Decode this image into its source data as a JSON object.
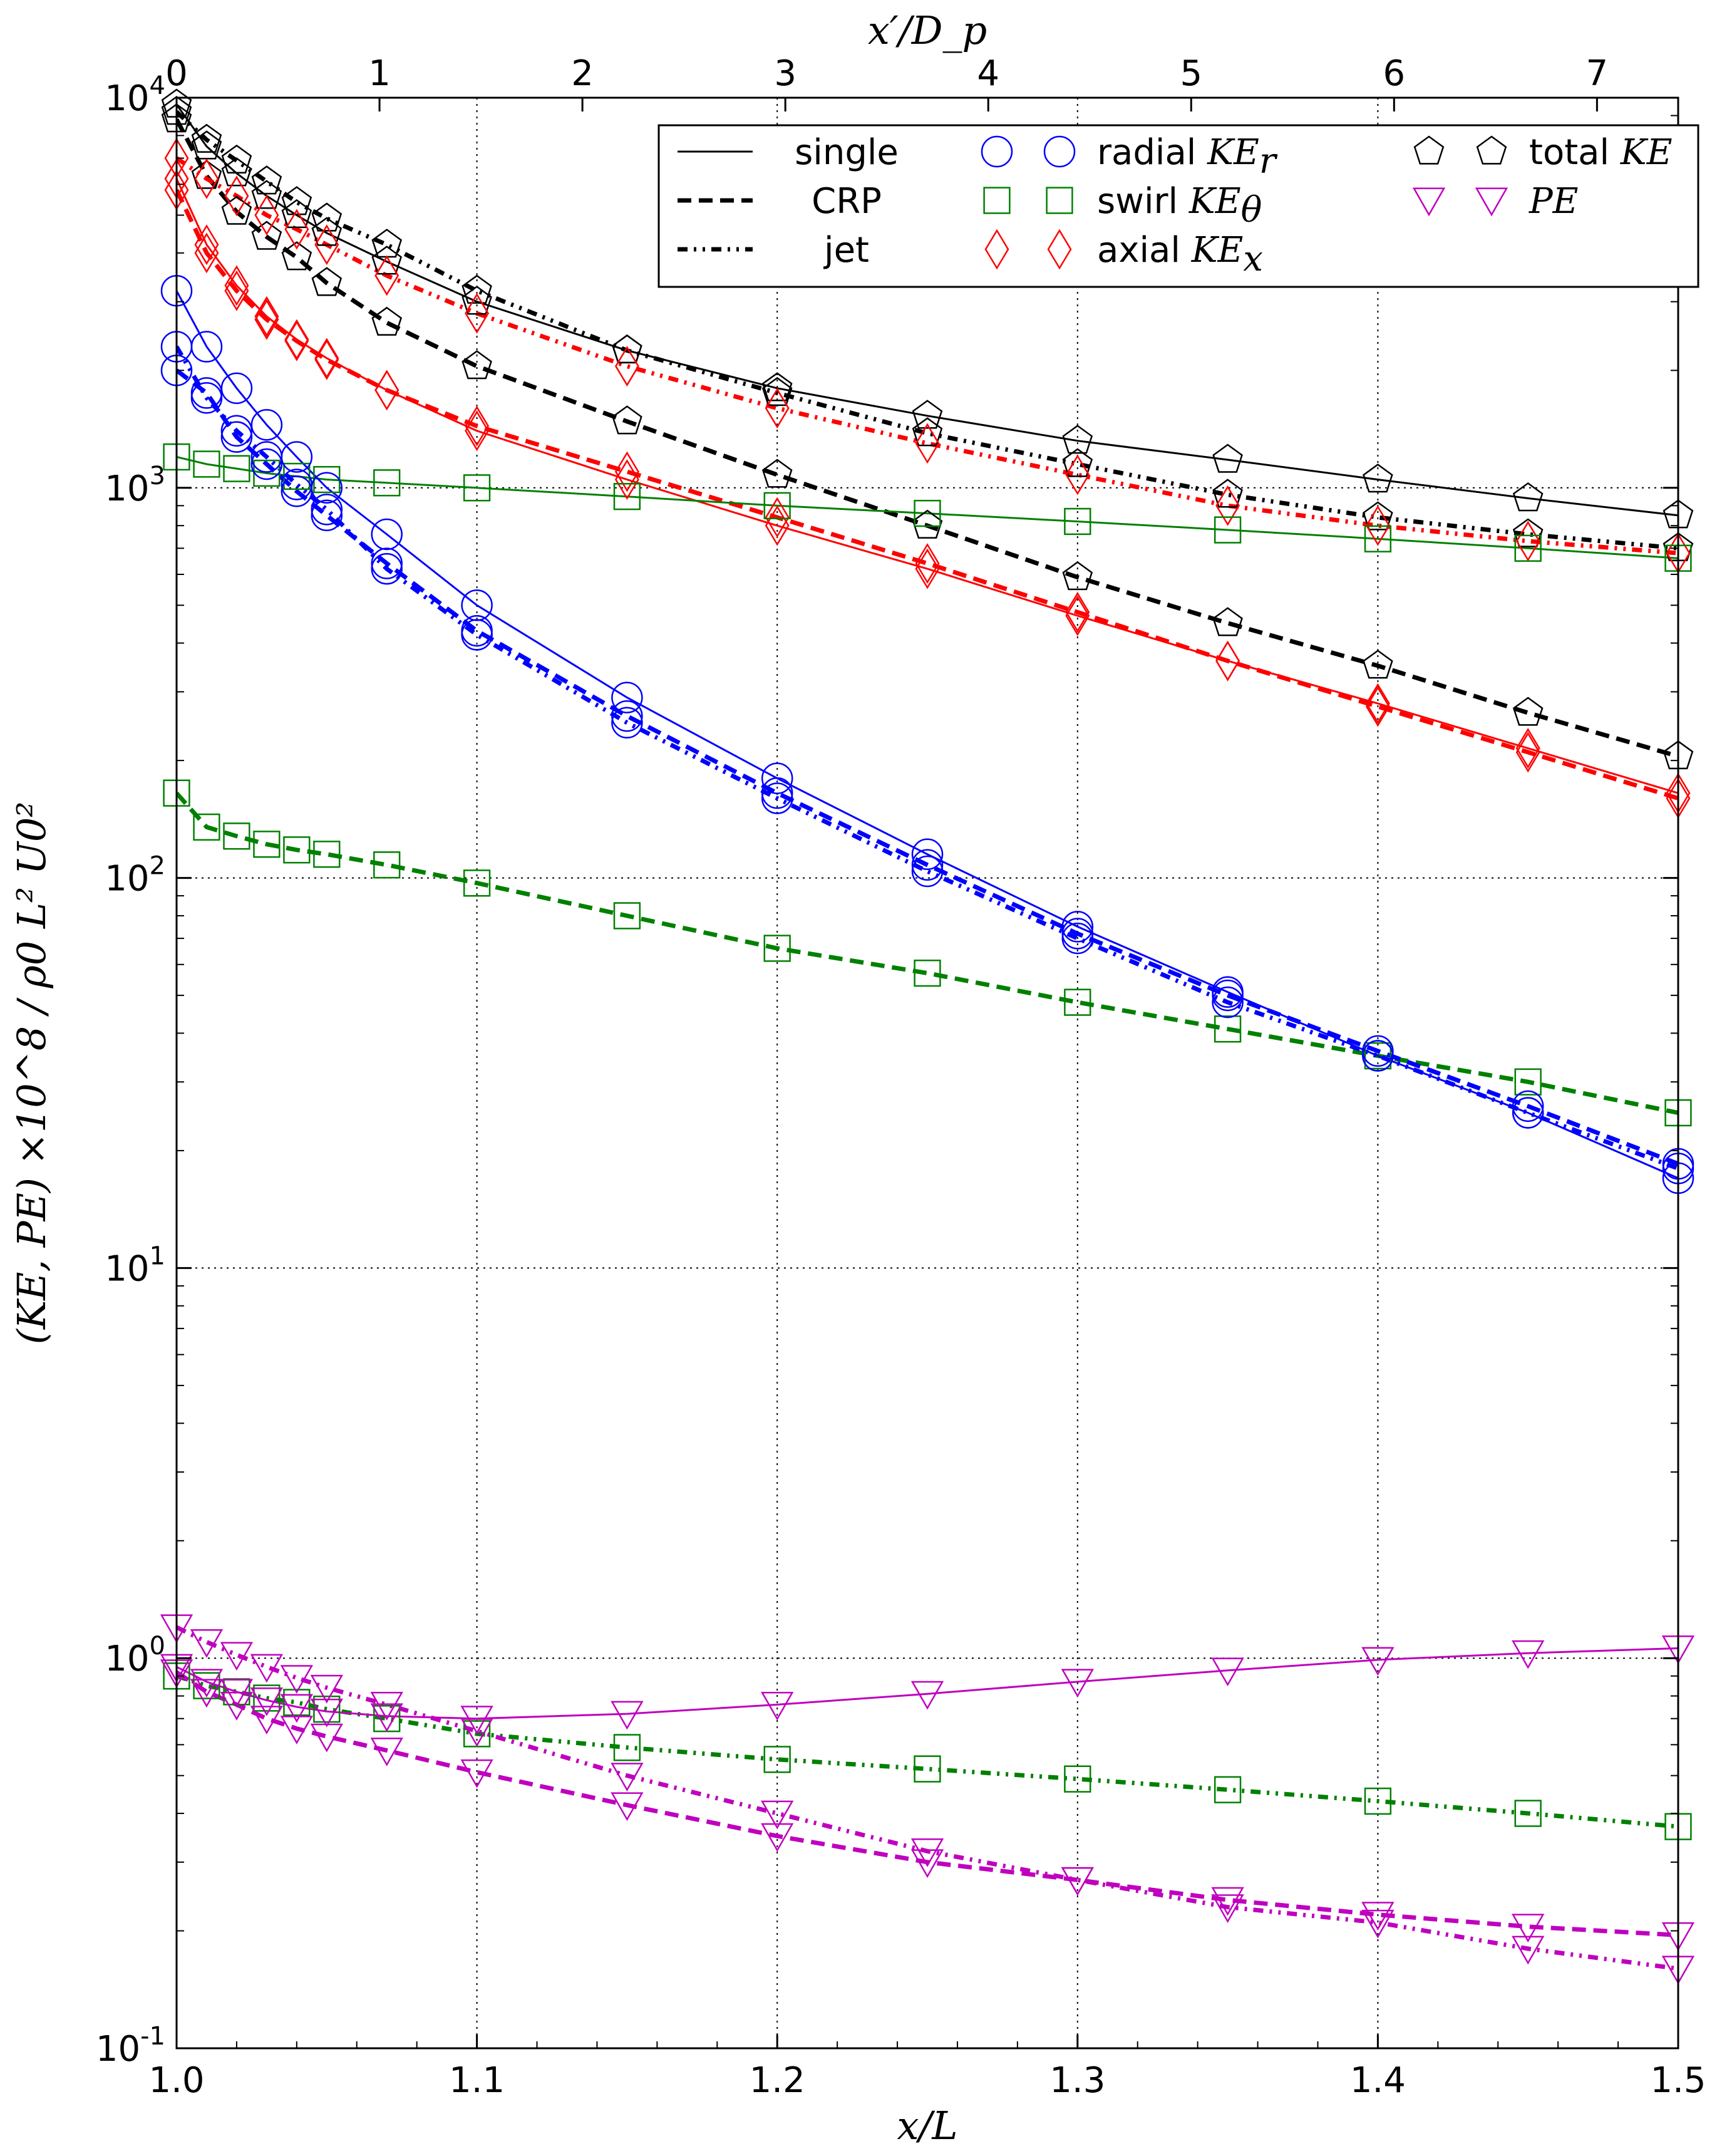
{
  "chart_data": {
    "type": "line",
    "title": "",
    "xlabel": "x/L",
    "x2label": "x′/D_p",
    "ylabel": "(KE, PE) ×10^8 / ρ0 L² U0²",
    "xlim": [
      1.0,
      1.5
    ],
    "ylim": [
      0.1,
      10000
    ],
    "yscale": "log",
    "grid": true,
    "x_ticks": [
      "1.0",
      "1.1",
      "1.2",
      "1.3",
      "1.4",
      "1.5"
    ],
    "x2_ticks": [
      "0",
      "1",
      "2",
      "3",
      "4",
      "5",
      "6",
      "7"
    ],
    "y_ticks": [
      {
        "base": "10",
        "exp": "4"
      },
      {
        "base": "10",
        "exp": "3"
      },
      {
        "base": "10",
        "exp": "2"
      },
      {
        "base": "10",
        "exp": "1"
      },
      {
        "base": "10",
        "exp": "0"
      },
      {
        "base": "10",
        "exp": "-1"
      }
    ],
    "legend": {
      "placement": "top-right",
      "configurations": [
        {
          "label": "single",
          "style": "solid"
        },
        {
          "label": "CRP",
          "style": "dashed"
        },
        {
          "label": "jet",
          "style": "dashdotdot"
        }
      ],
      "quantities": [
        {
          "label": "radial",
          "math": "KE",
          "sub": "r",
          "marker": "circle",
          "color": "#0000ff"
        },
        {
          "label": "swirl",
          "math": "KE",
          "sub": "θ",
          "marker": "square",
          "color": "#008000"
        },
        {
          "label": "axial",
          "math": "KE",
          "sub": "x",
          "marker": "diamond",
          "color": "#ff0000"
        },
        {
          "label": "total",
          "math": "KE",
          "sub": "",
          "marker": "pentagon",
          "color": "#000000"
        },
        {
          "label": "",
          "math": "PE",
          "sub": "",
          "marker": "triangle",
          "color": "#bf00bf"
        }
      ]
    },
    "series": [
      {
        "name": "total KE single",
        "quantity": "total",
        "config": "single",
        "color": "#000000",
        "marker": "pentagon",
        "x": [
          1.0,
          1.01,
          1.02,
          1.03,
          1.04,
          1.05,
          1.07,
          1.1,
          1.15,
          1.2,
          1.25,
          1.3,
          1.35,
          1.4,
          1.45,
          1.5
        ],
        "y": [
          9600,
          7500,
          6400,
          5600,
          5000,
          4500,
          3800,
          3000,
          2250,
          1800,
          1530,
          1320,
          1180,
          1050,
          940,
          850
        ]
      },
      {
        "name": "total KE CRP",
        "quantity": "total",
        "config": "CRP",
        "color": "#000000",
        "marker": "pentagon",
        "x": [
          1.0,
          1.01,
          1.02,
          1.03,
          1.04,
          1.05,
          1.07,
          1.1,
          1.15,
          1.2,
          1.25,
          1.3,
          1.35,
          1.4,
          1.45,
          1.5
        ],
        "y": [
          8800,
          6300,
          5100,
          4400,
          3900,
          3350,
          2650,
          2050,
          1480,
          1080,
          800,
          590,
          450,
          350,
          265,
          205
        ]
      },
      {
        "name": "total KE jet",
        "quantity": "total",
        "config": "jet",
        "color": "#000000",
        "marker": "pentagon",
        "x": [
          1.0,
          1.01,
          1.02,
          1.03,
          1.04,
          1.05,
          1.07,
          1.1,
          1.15,
          1.2,
          1.25,
          1.3,
          1.35,
          1.4,
          1.45,
          1.5
        ],
        "y": [
          9200,
          7800,
          6900,
          6100,
          5400,
          4900,
          4200,
          3200,
          2250,
          1750,
          1380,
          1150,
          960,
          840,
          760,
          700
        ]
      },
      {
        "name": "axial KE single",
        "quantity": "axial",
        "config": "single",
        "color": "#ff0000",
        "marker": "diamond",
        "x": [
          1.0,
          1.01,
          1.02,
          1.03,
          1.04,
          1.05,
          1.07,
          1.1,
          1.15,
          1.2,
          1.25,
          1.3,
          1.35,
          1.4,
          1.45,
          1.5
        ],
        "y": [
          6200,
          4200,
          3300,
          2750,
          2400,
          2150,
          1780,
          1400,
          1050,
          800,
          620,
          470,
          360,
          280,
          215,
          165
        ]
      },
      {
        "name": "axial KE CRP",
        "quantity": "axial",
        "config": "CRP",
        "color": "#ff0000",
        "marker": "diamond",
        "x": [
          1.0,
          1.01,
          1.02,
          1.03,
          1.04,
          1.05,
          1.07,
          1.1,
          1.15,
          1.2,
          1.25,
          1.3,
          1.35,
          1.4,
          1.45,
          1.5
        ],
        "y": [
          5800,
          4000,
          3200,
          2700,
          2380,
          2130,
          1780,
          1440,
          1100,
          840,
          640,
          480,
          360,
          275,
          210,
          160
        ]
      },
      {
        "name": "axial KE jet",
        "quantity": "axial",
        "config": "jet",
        "color": "#ff0000",
        "marker": "diamond",
        "x": [
          1.0,
          1.01,
          1.02,
          1.03,
          1.04,
          1.05,
          1.07,
          1.1,
          1.15,
          1.2,
          1.25,
          1.3,
          1.35,
          1.4,
          1.45,
          1.5
        ],
        "y": [
          7000,
          6200,
          5600,
          5000,
          4600,
          4200,
          3500,
          2800,
          2050,
          1600,
          1300,
          1080,
          900,
          800,
          730,
          680
        ]
      },
      {
        "name": "swirl KE single",
        "quantity": "swirl",
        "config": "single",
        "color": "#008000",
        "marker": "square",
        "x": [
          1.0,
          1.01,
          1.02,
          1.03,
          1.04,
          1.05,
          1.07,
          1.1,
          1.15,
          1.2,
          1.25,
          1.3,
          1.35,
          1.4,
          1.45,
          1.5
        ],
        "y": [
          1200,
          1150,
          1120,
          1090,
          1070,
          1050,
          1030,
          1000,
          950,
          900,
          860,
          820,
          780,
          740,
          700,
          660
        ]
      },
      {
        "name": "swirl KE CRP",
        "quantity": "swirl",
        "config": "CRP",
        "color": "#008000",
        "marker": "square",
        "x": [
          1.0,
          1.01,
          1.02,
          1.03,
          1.04,
          1.05,
          1.07,
          1.1,
          1.15,
          1.2,
          1.25,
          1.3,
          1.35,
          1.4,
          1.45,
          1.5
        ],
        "y": [
          165,
          135,
          128,
          122,
          118,
          115,
          108,
          97,
          80,
          66,
          57,
          48,
          41,
          35,
          30,
          25
        ]
      },
      {
        "name": "swirl KE jet",
        "quantity": "swirl",
        "config": "jet",
        "color": "#008000",
        "marker": "square",
        "x": [
          1.0,
          1.01,
          1.02,
          1.03,
          1.04,
          1.05,
          1.07,
          1.1,
          1.15,
          1.2,
          1.25,
          1.3,
          1.35,
          1.4,
          1.45,
          1.5
        ],
        "y": [
          0.9,
          0.85,
          0.82,
          0.79,
          0.77,
          0.74,
          0.7,
          0.64,
          0.59,
          0.55,
          0.52,
          0.49,
          0.46,
          0.43,
          0.4,
          0.37
        ]
      },
      {
        "name": "radial KE single",
        "quantity": "radial",
        "config": "single",
        "color": "#0000ff",
        "marker": "circle",
        "x": [
          1.0,
          1.01,
          1.02,
          1.03,
          1.04,
          1.05,
          1.07,
          1.1,
          1.15,
          1.2,
          1.25,
          1.3,
          1.35,
          1.4,
          1.45,
          1.5
        ],
        "y": [
          3200,
          2300,
          1800,
          1450,
          1200,
          1000,
          760,
          500,
          290,
          180,
          115,
          75,
          51,
          35,
          25,
          17
        ]
      },
      {
        "name": "radial KE CRP",
        "quantity": "radial",
        "config": "CRP",
        "color": "#0000ff",
        "marker": "circle",
        "x": [
          1.0,
          1.01,
          1.02,
          1.03,
          1.04,
          1.05,
          1.07,
          1.1,
          1.15,
          1.2,
          1.25,
          1.3,
          1.35,
          1.4,
          1.45,
          1.5
        ],
        "y": [
          2000,
          1750,
          1350,
          1150,
          980,
          850,
          640,
          430,
          260,
          165,
          108,
          72,
          50,
          36,
          26,
          18.5
        ]
      },
      {
        "name": "radial KE jet",
        "quantity": "radial",
        "config": "jet",
        "color": "#0000ff",
        "marker": "circle",
        "x": [
          1.0,
          1.01,
          1.02,
          1.03,
          1.04,
          1.05,
          1.07,
          1.1,
          1.15,
          1.2,
          1.25,
          1.3,
          1.35,
          1.4,
          1.45,
          1.5
        ],
        "y": [
          2300,
          1700,
          1400,
          1200,
          1020,
          880,
          620,
          420,
          250,
          160,
          104,
          70,
          48,
          35,
          25,
          18
        ]
      },
      {
        "name": "PE single",
        "quantity": "PE",
        "config": "single",
        "color": "#bf00bf",
        "marker": "triangle",
        "x": [
          1.0,
          1.01,
          1.02,
          1.03,
          1.04,
          1.05,
          1.07,
          1.1,
          1.15,
          1.2,
          1.25,
          1.3,
          1.35,
          1.4,
          1.45,
          1.5
        ],
        "y": [
          0.95,
          0.87,
          0.82,
          0.78,
          0.75,
          0.73,
          0.71,
          0.7,
          0.72,
          0.76,
          0.81,
          0.87,
          0.93,
          0.99,
          1.03,
          1.06
        ]
      },
      {
        "name": "PE CRP",
        "quantity": "PE",
        "config": "CRP",
        "color": "#bf00bf",
        "marker": "triangle",
        "x": [
          1.0,
          1.01,
          1.02,
          1.03,
          1.04,
          1.05,
          1.07,
          1.1,
          1.15,
          1.2,
          1.25,
          1.3,
          1.35,
          1.4,
          1.45,
          1.5
        ],
        "y": [
          0.92,
          0.82,
          0.76,
          0.7,
          0.66,
          0.63,
          0.58,
          0.51,
          0.42,
          0.35,
          0.3,
          0.27,
          0.24,
          0.22,
          0.205,
          0.195
        ]
      },
      {
        "name": "PE jet",
        "quantity": "PE",
        "config": "jet",
        "color": "#bf00bf",
        "marker": "triangle",
        "x": [
          1.0,
          1.01,
          1.02,
          1.03,
          1.04,
          1.05,
          1.07,
          1.1,
          1.15,
          1.2,
          1.25,
          1.3,
          1.35,
          1.4,
          1.45,
          1.5
        ],
        "y": [
          1.2,
          1.1,
          1.02,
          0.95,
          0.89,
          0.84,
          0.76,
          0.65,
          0.5,
          0.4,
          0.32,
          0.27,
          0.23,
          0.21,
          0.18,
          0.16
        ]
      }
    ]
  }
}
